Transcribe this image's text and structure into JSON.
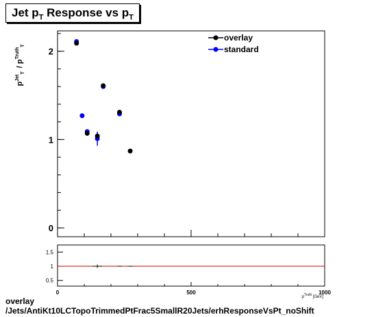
{
  "title": {
    "main": "Jet p",
    "sub1": "T",
    "mid": " Response vs p",
    "sub2": "T"
  },
  "footer": {
    "line1": "overlay",
    "line2": "/Jets/AntiKt10LCTopoTrimmedPtFrac5SmallR20Jets/erhResponseVsPt_noShift"
  },
  "colors": {
    "overlay": "#000000",
    "standard": "#0000ff",
    "ratio_line": "#cc0000"
  },
  "chart_data": [
    {
      "type": "scatter",
      "title": "Jet pT Response vs pT",
      "ylabel": "pT Jet / pT Truth",
      "xlabel": "pT Truth [GeV]",
      "xlim": [
        0,
        1000
      ],
      "ylim": [
        -0.1,
        2.23
      ],
      "yticks": [
        0,
        1,
        2
      ],
      "xticks": [
        0,
        500,
        1000
      ],
      "legend_position": "top-right",
      "grid": false,
      "series": [
        {
          "name": "overlay",
          "color": "#000000",
          "points": [
            {
              "x": 71,
              "y": 2.09,
              "yerr": 0.02
            },
            {
              "x": 111,
              "y": 1.07,
              "yerr": 0.02
            },
            {
              "x": 149,
              "y": 1.04,
              "yerr": 0.03
            },
            {
              "x": 171,
              "y": 1.61,
              "yerr": 0.02
            },
            {
              "x": 232,
              "y": 1.31,
              "yerr": 0.01
            },
            {
              "x": 272,
              "y": 0.87,
              "yerr": 0.01
            }
          ]
        },
        {
          "name": "standard",
          "color": "#0000ff",
          "points": [
            {
              "x": 71,
              "y": 2.11,
              "yerr": 0.02
            },
            {
              "x": 92,
              "y": 1.27,
              "yerr": 0.02
            },
            {
              "x": 111,
              "y": 1.09,
              "yerr": 0.02
            },
            {
              "x": 149,
              "y": 1.01,
              "yerr": 0.08
            },
            {
              "x": 171,
              "y": 1.6,
              "yerr": 0.02
            },
            {
              "x": 232,
              "y": 1.29,
              "yerr": 0.02
            }
          ]
        }
      ]
    },
    {
      "type": "scatter",
      "title": "",
      "xlim": [
        0,
        1000
      ],
      "ylim": [
        0.3,
        1.75
      ],
      "yticks": [
        0.5,
        1,
        1.5
      ],
      "xticks": [
        0,
        500,
        1000
      ],
      "reference_line": 1,
      "series": [
        {
          "name": "ratio",
          "color": "#000000",
          "points": [
            {
              "x": 149,
              "y": 1.0,
              "yerr": 0.06,
              "xerr": 18
            },
            {
              "x": 232,
              "y": 1.0,
              "yerr": 0.0,
              "xerr": 9
            },
            {
              "x": 272,
              "y": 1.0,
              "yerr": 0.0,
              "xerr": 9
            }
          ]
        }
      ]
    }
  ],
  "labels": {
    "main_ytick_labels": [
      "0",
      "1",
      "2"
    ],
    "ratio_ytick_labels": [
      "0.5",
      "1",
      "1.5"
    ],
    "xtick_labels": [
      "0",
      "500",
      "1000"
    ],
    "legend": [
      "overlay",
      "standard"
    ]
  }
}
